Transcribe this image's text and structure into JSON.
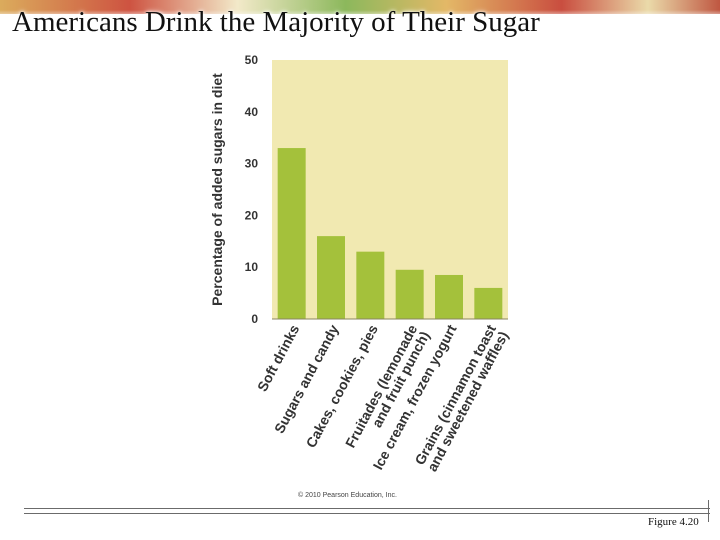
{
  "slide": {
    "title": "Americans Drink the Majority of Their Sugar",
    "copyright": "© 2010 Pearson Education, Inc.",
    "figure_label": "Figure 4.20"
  },
  "colors": {
    "bar": "#a4c13b",
    "plot_background": "#f1e9b1",
    "text": "#333333"
  },
  "chart_data": {
    "type": "bar",
    "ylabel": "Percentage of added sugars in diet",
    "xlabel": "",
    "ylim": [
      0,
      50
    ],
    "yticks": [
      0,
      10,
      20,
      30,
      40,
      50
    ],
    "grid": false,
    "categories": [
      [
        "Soft drinks"
      ],
      [
        "Sugars and candy"
      ],
      [
        "Cakes, cookies, pies"
      ],
      [
        "Fruitades (lemonade",
        "and fruit punch)"
      ],
      [
        "Ice cream, frozen yogurt"
      ],
      [
        "Grains (cinnamon toast",
        "and sweetened waffles)"
      ]
    ],
    "values": [
      33,
      16,
      13,
      9.5,
      8.5,
      6
    ]
  }
}
